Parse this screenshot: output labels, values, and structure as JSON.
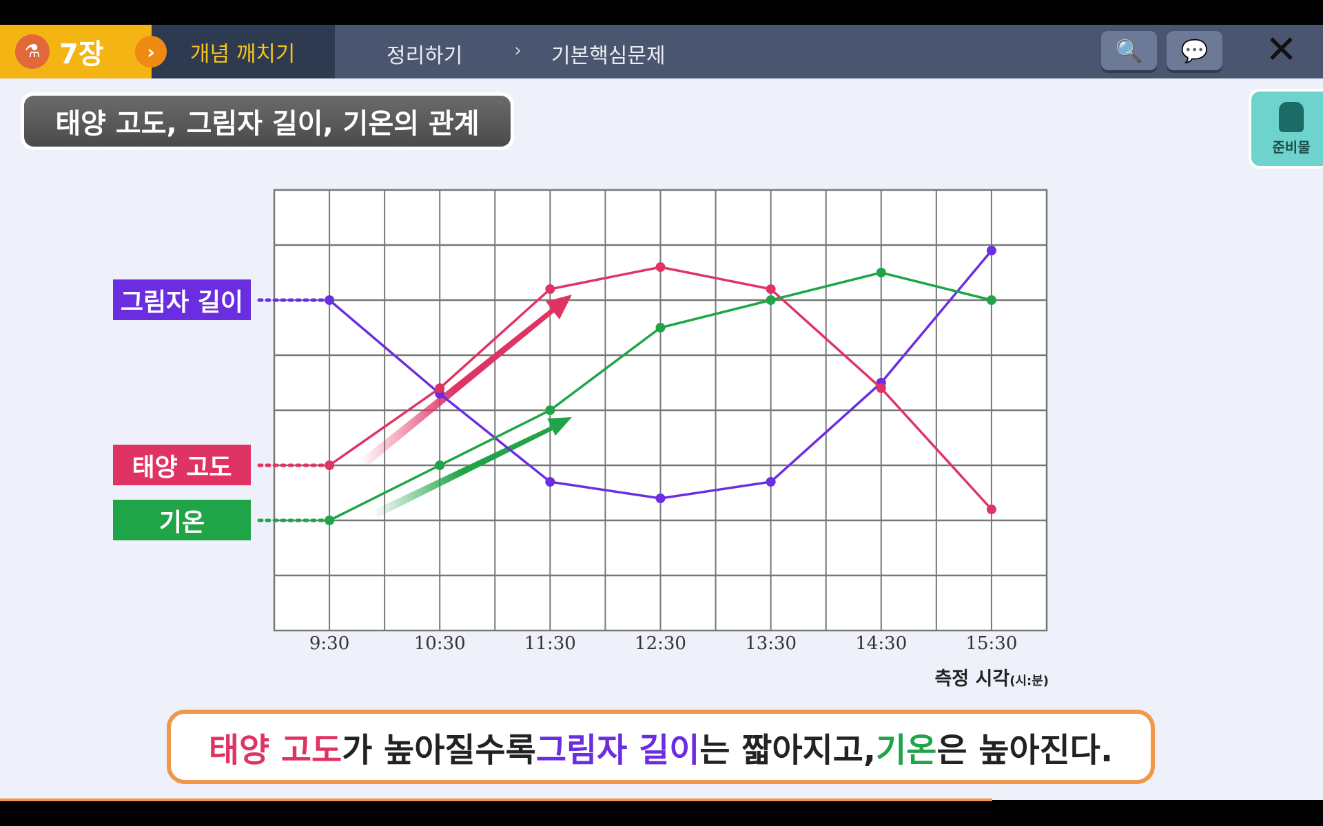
{
  "header": {
    "chapter": "7장",
    "tabs": [
      "개념 깨치기",
      "정리하기",
      "기본핵심문제"
    ],
    "active_tab": 0,
    "icons": {
      "chapter": "flask-icon",
      "search": "book-search-icon",
      "chat": "speech-bubble-icon",
      "close": "close-icon"
    }
  },
  "title": "태양 고도, 그림자 길이, 기온의 관계",
  "supplies_label": "준비물",
  "labels": {
    "shadow": "그림자 길이",
    "sun": "태양 고도",
    "temp": "기온"
  },
  "colors": {
    "shadow": "#6a2de0",
    "sun": "#df3463",
    "temp": "#1fa448",
    "accent": "#f3b414"
  },
  "chart_data": {
    "type": "line",
    "categories": [
      "9:30",
      "10:30",
      "11:30",
      "12:30",
      "13:30",
      "14:30",
      "15:30"
    ],
    "xlabel": "측정 시각",
    "xlabel_unit": "(시:분)",
    "ylim": [
      0,
      8
    ],
    "grid": true,
    "series": [
      {
        "name": "그림자 길이",
        "color": "#6a2de0",
        "values": [
          6.0,
          4.3,
          2.7,
          2.4,
          2.7,
          4.5,
          6.9
        ]
      },
      {
        "name": "태양 고도",
        "color": "#df3463",
        "values": [
          3.0,
          4.4,
          6.2,
          6.6,
          6.2,
          4.4,
          2.2
        ]
      },
      {
        "name": "기온",
        "color": "#1fa448",
        "values": [
          2.0,
          3.0,
          4.0,
          5.5,
          6.0,
          6.5,
          6.0
        ]
      }
    ]
  },
  "statement": {
    "p1": "태양 고도",
    "p2": "가 높아질수록 ",
    "p3": "그림자 길이",
    "p4": "는 짧아지고, ",
    "p5": "기온",
    "p6": "은 높아진다."
  },
  "progress": 0.75
}
